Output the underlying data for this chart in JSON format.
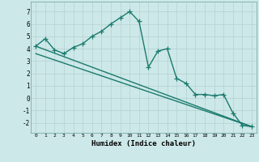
{
  "xlabel": "Humidex (Indice chaleur)",
  "ylabel": "",
  "bg_color": "#cde8e8",
  "grid_color": "#b8d4d4",
  "line_color": "#1a7a6e",
  "xlim": [
    -0.5,
    23.5
  ],
  "ylim": [
    -2.8,
    7.8
  ],
  "xticks": [
    0,
    1,
    2,
    3,
    4,
    5,
    6,
    7,
    8,
    9,
    10,
    11,
    12,
    13,
    14,
    15,
    16,
    17,
    18,
    19,
    20,
    21,
    22,
    23
  ],
  "yticks": [
    -2,
    -1,
    0,
    1,
    2,
    3,
    4,
    5,
    6,
    7
  ],
  "series1_x": [
    0,
    1,
    2,
    3,
    4,
    5,
    6,
    7,
    8,
    9,
    10,
    11,
    12,
    13,
    14,
    15,
    16,
    17,
    18,
    19,
    20,
    21,
    22,
    23
  ],
  "series1_y": [
    4.2,
    4.8,
    3.9,
    3.6,
    4.1,
    4.4,
    5.0,
    5.4,
    6.0,
    6.5,
    7.0,
    6.2,
    2.5,
    3.8,
    4.0,
    1.6,
    1.2,
    0.3,
    0.3,
    0.2,
    0.3,
    -1.2,
    -2.2,
    -2.3
  ],
  "series2_x": [
    0,
    23
  ],
  "series2_y": [
    4.2,
    -2.3
  ],
  "series3_x": [
    0,
    23
  ],
  "series3_y": [
    3.6,
    -2.3
  ],
  "marker_size": 4.0,
  "line_width": 1.0
}
